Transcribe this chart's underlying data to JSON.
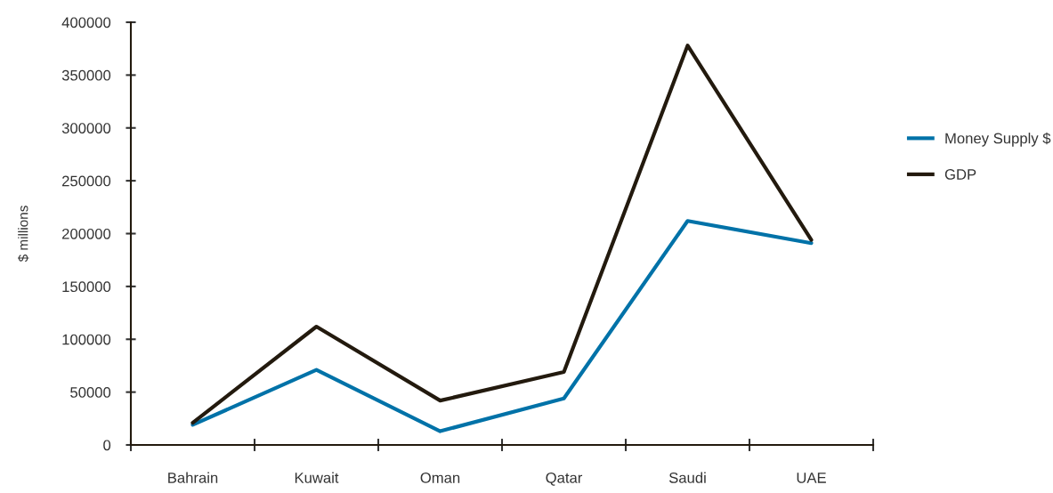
{
  "chart_data": {
    "type": "line",
    "ylabel": "$ millions",
    "categories": [
      "Bahrain",
      "Kuwait",
      "Oman",
      "Qatar",
      "Saudi",
      "UAE"
    ],
    "series": [
      {
        "name": "Money Supply $",
        "color": "#0072a8",
        "values": [
          19000,
          71000,
          13000,
          44000,
          212000,
          191000
        ]
      },
      {
        "name": "GDP",
        "color": "#231a0e",
        "values": [
          21000,
          112000,
          42000,
          69000,
          378000,
          194000
        ]
      }
    ],
    "ylim": [
      0,
      400000
    ],
    "yticks": [
      0,
      50000,
      100000,
      150000,
      200000,
      250000,
      300000,
      350000,
      400000
    ],
    "grid": false,
    "legend": "right",
    "marker": "none",
    "line_style": "solid"
  }
}
